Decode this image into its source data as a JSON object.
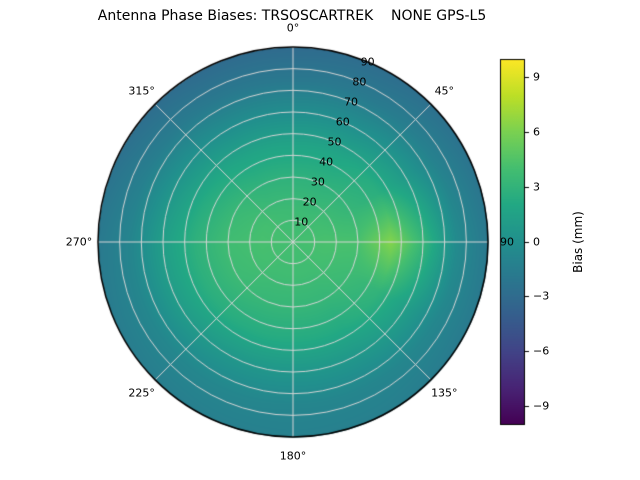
{
  "chart_data": {
    "type": "heatmap",
    "projection": "polar",
    "title": "Antenna Phase Biases: TRSOSCARTREK    NONE GPS-L5",
    "colormap": "viridis",
    "grid": true,
    "colorbar_label": "Bias (mm)",
    "colorbar_tick_labels": [
      "9",
      "6",
      "3",
      "0",
      "−3",
      "−6",
      "−9"
    ],
    "colorbar_tick_values": [
      9,
      6,
      3,
      0,
      -3,
      -6,
      -9
    ],
    "value_range": [
      -10,
      10
    ],
    "angle_ticks": [
      {
        "label": "0°",
        "deg": 0
      },
      {
        "label": "45°",
        "deg": 45
      },
      {
        "label": "90",
        "deg": 90
      },
      {
        "label": "135°",
        "deg": 135
      },
      {
        "label": "180°",
        "deg": 180
      },
      {
        "label": "225°",
        "deg": 225
      },
      {
        "label": "270°",
        "deg": 270
      },
      {
        "label": "315°",
        "deg": 315
      }
    ],
    "radial_ticks": [
      10,
      20,
      30,
      40,
      50,
      60,
      70,
      80,
      90
    ],
    "radial_label_angle_deg": 22.5,
    "radial_max": 90,
    "azimuth_deg": [
      0,
      30,
      60,
      90,
      120,
      150,
      180,
      210,
      240,
      270,
      300,
      330
    ],
    "radius": [
      0,
      15,
      30,
      45,
      60,
      75,
      90
    ],
    "values": [
      [
        4.0,
        3.6,
        2.8,
        1.6,
        -0.2,
        -2.0,
        -3.0
      ],
      [
        4.0,
        3.6,
        2.8,
        1.8,
        0.0,
        -1.8,
        -2.8
      ],
      [
        4.0,
        3.9,
        3.2,
        2.6,
        0.8,
        -1.2,
        -2.4
      ],
      [
        4.0,
        4.2,
        4.2,
        6.3,
        3.2,
        -0.4,
        -2.0
      ],
      [
        4.0,
        4.0,
        3.6,
        3.0,
        1.2,
        -0.8,
        -1.8
      ],
      [
        4.0,
        3.8,
        3.2,
        2.2,
        0.6,
        -0.9,
        -1.4
      ],
      [
        4.0,
        3.8,
        3.2,
        2.2,
        0.5,
        -0.9,
        -1.3
      ],
      [
        4.0,
        3.8,
        3.3,
        2.3,
        0.6,
        -0.8,
        -1.4
      ],
      [
        4.0,
        4.0,
        3.6,
        2.6,
        1.0,
        -0.8,
        -1.6
      ],
      [
        4.0,
        4.1,
        3.8,
        2.8,
        1.2,
        -0.9,
        -1.9
      ],
      [
        4.0,
        4.0,
        3.4,
        2.2,
        0.4,
        -1.5,
        -2.6
      ],
      [
        4.0,
        3.7,
        2.9,
        1.7,
        -0.1,
        -1.9,
        -3.0
      ]
    ],
    "grid_color": "#d6d6d6",
    "outline_color": "#000000"
  }
}
